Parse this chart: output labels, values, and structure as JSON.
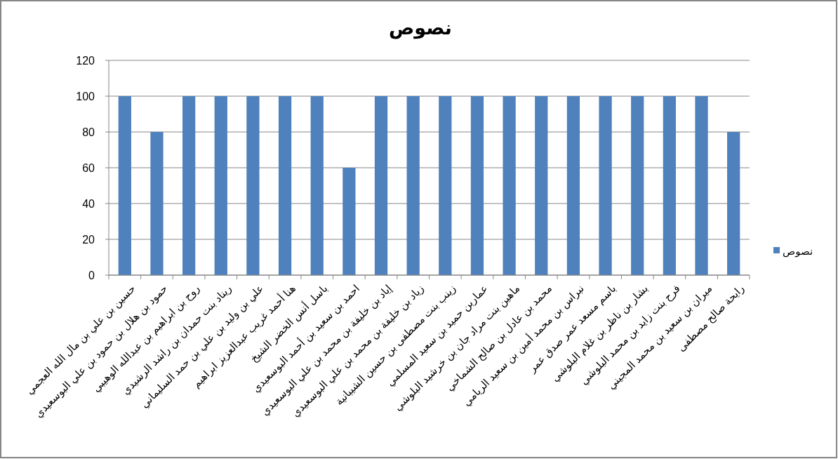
{
  "chart_data": {
    "type": "bar",
    "title": "نصوص",
    "categories": [
      "حسين بن علي بن مال الله العجمي",
      "حمود بن هلال بن حمود بن علي البوسعيدي",
      "روح بن ابراهيم بن عبدالله الوهيبي",
      "ريناد بنت حمدان بن راشد الرشيدي",
      "علي بن وليد بن علي بن حمد السليماني",
      "هنا أحمد غريب عبدالعزيز ابراهيم",
      "باسل أنس الخضر الشيخ",
      "احمد بن سعيد بن أحمد البوسعيدي",
      "إياد بن خليفة بن محمد بن علي البوسعيدي",
      "زياد بن خليفة بن محمد بن علي البوسعيدي",
      "زينب بنت مصطفى بن حسين الشيبانية",
      "عماربن حميد بن سعيد المسلمي",
      "ماهين بنت مراد جان بن خرشيد البلوشي",
      "محمد بن عادل بن صالح الشماخي",
      "نبراس بن محمد أمين بن سعيد الريامي",
      "باسم مسعد عمر صدق عمر",
      "بشار بن ناظر بن غلام البلوشي",
      "فرح بنت زايد بن محمد البلوشي",
      "ميران بن سعيد بن محمد المجيني",
      "رايحة صالح مصطفى"
    ],
    "series": [
      {
        "name": "نصوص",
        "color": "#4f81bd",
        "values": [
          100,
          80,
          100,
          100,
          100,
          100,
          100,
          60,
          100,
          100,
          100,
          100,
          100,
          100,
          100,
          100,
          100,
          100,
          100,
          80
        ]
      }
    ],
    "ylim": [
      0,
      120
    ],
    "yticks": [
      0,
      20,
      40,
      60,
      80,
      100,
      120
    ],
    "grid": "y",
    "legend": "right"
  }
}
